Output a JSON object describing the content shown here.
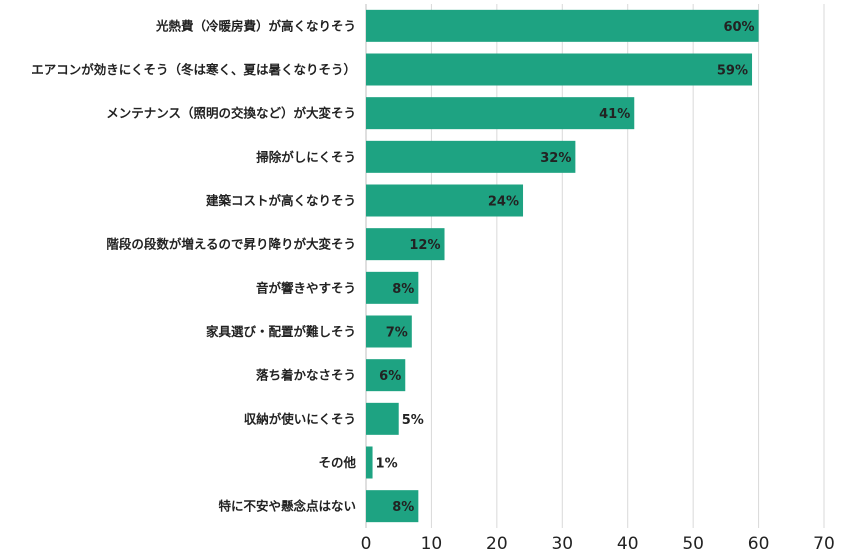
{
  "chart_data": {
    "type": "bar",
    "orientation": "horizontal",
    "categories": [
      "光熱費（冷暖房費）が高くなりそう",
      "エアコンが効きにくそう（冬は寒く、夏は暑くなりそう）",
      "メンテナンス（照明の交換など）が大変そう",
      "掃除がしにくそう",
      "建築コストが高くなりそう",
      "階段の段数が増えるので昇り降りが大変そう",
      "音が響きやすそう",
      "家具選び・配置が難しそう",
      "落ち着かなさそう",
      "収納が使いにくそう",
      "その他",
      "特に不安や懸念点はない"
    ],
    "values": [
      60,
      59,
      41,
      32,
      24,
      12,
      8,
      7,
      6,
      5,
      1,
      8
    ],
    "value_labels": [
      "60%",
      "59%",
      "41%",
      "32%",
      "24%",
      "12%",
      "8%",
      "7%",
      "6%",
      "5%",
      "1%",
      "8%"
    ],
    "xlim": [
      0,
      70
    ],
    "x_ticks": [
      0,
      10,
      20,
      30,
      40,
      50,
      60,
      70
    ],
    "grid": true,
    "bar_color": "#1ea382",
    "title": "",
    "xlabel": "",
    "ylabel": ""
  }
}
